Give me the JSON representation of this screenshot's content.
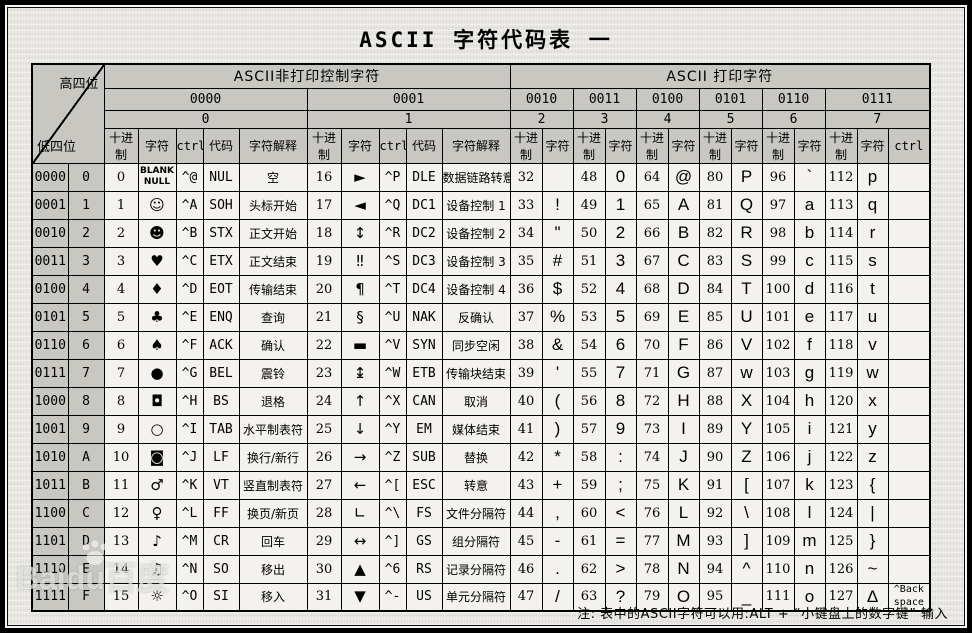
{
  "title": "ASCII 字符代码表 一",
  "corner": {
    "top": "高四位",
    "bottom": "低四位"
  },
  "section_control": "ASCII非打印控制字符",
  "section_print": "ASCII 打印字符",
  "subheaders": {
    "dec": "十进制",
    "char": "字符",
    "ctrl": "ctrl",
    "code": "代码",
    "meaning": "字符解释"
  },
  "row_labels": [
    [
      "0000",
      "0"
    ],
    [
      "0001",
      "1"
    ],
    [
      "0010",
      "2"
    ],
    [
      "0011",
      "3"
    ],
    [
      "0100",
      "4"
    ],
    [
      "0101",
      "5"
    ],
    [
      "0110",
      "6"
    ],
    [
      "0111",
      "7"
    ],
    [
      "1000",
      "8"
    ],
    [
      "1001",
      "9"
    ],
    [
      "1010",
      "A"
    ],
    [
      "1011",
      "B"
    ],
    [
      "1100",
      "C"
    ],
    [
      "1101",
      "D"
    ],
    [
      "1110",
      "E"
    ],
    [
      "1111",
      "F"
    ]
  ],
  "control_groups": [
    {
      "bin": "0000",
      "hex": "0",
      "rows": [
        [
          "0",
          "BLANK\nNULL",
          "^@",
          "NUL",
          "空"
        ],
        [
          "1",
          "☺",
          "^A",
          "SOH",
          "头标开始"
        ],
        [
          "2",
          "☻",
          "^B",
          "STX",
          "正文开始"
        ],
        [
          "3",
          "♥",
          "^C",
          "ETX",
          "正文结束"
        ],
        [
          "4",
          "♦",
          "^D",
          "EOT",
          "传输结束"
        ],
        [
          "5",
          "♣",
          "^E",
          "ENQ",
          "查询"
        ],
        [
          "6",
          "♠",
          "^F",
          "ACK",
          "确认"
        ],
        [
          "7",
          "●",
          "^G",
          "BEL",
          "震铃"
        ],
        [
          "8",
          "◘",
          "^H",
          "BS",
          "退格"
        ],
        [
          "9",
          "○",
          "^I",
          "TAB",
          "水平制表符"
        ],
        [
          "10",
          "◙",
          "^J",
          "LF",
          "换行/新行"
        ],
        [
          "11",
          "♂",
          "^K",
          "VT",
          "竖直制表符"
        ],
        [
          "12",
          "♀",
          "^L",
          "FF",
          "换页/新页"
        ],
        [
          "13",
          "♪",
          "^M",
          "CR",
          "回车"
        ],
        [
          "14",
          "♫",
          "^N",
          "SO",
          "移出"
        ],
        [
          "15",
          "☼",
          "^O",
          "SI",
          "移入"
        ]
      ]
    },
    {
      "bin": "0001",
      "hex": "1",
      "rows": [
        [
          "16",
          "►",
          "^P",
          "DLE",
          "数据链路转意"
        ],
        [
          "17",
          "◄",
          "^Q",
          "DC1",
          "设备控制 1"
        ],
        [
          "18",
          "↕",
          "^R",
          "DC2",
          "设备控制 2"
        ],
        [
          "19",
          "‼",
          "^S",
          "DC3",
          "设备控制 3"
        ],
        [
          "20",
          "¶",
          "^T",
          "DC4",
          "设备控制 4"
        ],
        [
          "21",
          "§",
          "^U",
          "NAK",
          "反确认"
        ],
        [
          "22",
          "▬",
          "^V",
          "SYN",
          "同步空闲"
        ],
        [
          "23",
          "↨",
          "^W",
          "ETB",
          "传输块结束"
        ],
        [
          "24",
          "↑",
          "^X",
          "CAN",
          "取消"
        ],
        [
          "25",
          "↓",
          "^Y",
          "EM",
          "媒体结束"
        ],
        [
          "26",
          "→",
          "^Z",
          "SUB",
          "替换"
        ],
        [
          "27",
          "←",
          "^[",
          "ESC",
          "转意"
        ],
        [
          "28",
          "∟",
          "^\\",
          "FS",
          "文件分隔符"
        ],
        [
          "29",
          "↔",
          "^]",
          "GS",
          "组分隔符"
        ],
        [
          "30",
          "▲",
          "^6",
          "RS",
          "记录分隔符"
        ],
        [
          "31",
          "▼",
          "^-",
          "US",
          "单元分隔符"
        ]
      ]
    }
  ],
  "print_groups": [
    {
      "bin": "0010",
      "hex": "2",
      "rows": [
        [
          "32",
          " "
        ],
        [
          "33",
          "!"
        ],
        [
          "34",
          "\""
        ],
        [
          "35",
          "#"
        ],
        [
          "36",
          "$"
        ],
        [
          "37",
          "%"
        ],
        [
          "38",
          "&"
        ],
        [
          "39",
          "'"
        ],
        [
          "40",
          "("
        ],
        [
          "41",
          ")"
        ],
        [
          "42",
          "*"
        ],
        [
          "43",
          "+"
        ],
        [
          "44",
          ","
        ],
        [
          "45",
          "-"
        ],
        [
          "46",
          "."
        ],
        [
          "47",
          "/"
        ]
      ]
    },
    {
      "bin": "0011",
      "hex": "3",
      "rows": [
        [
          "48",
          "0"
        ],
        [
          "49",
          "1"
        ],
        [
          "50",
          "2"
        ],
        [
          "51",
          "3"
        ],
        [
          "52",
          "4"
        ],
        [
          "53",
          "5"
        ],
        [
          "54",
          "6"
        ],
        [
          "55",
          "7"
        ],
        [
          "56",
          "8"
        ],
        [
          "57",
          "9"
        ],
        [
          "58",
          ":"
        ],
        [
          "59",
          ";"
        ],
        [
          "60",
          "<"
        ],
        [
          "61",
          "="
        ],
        [
          "62",
          ">"
        ],
        [
          "63",
          "?"
        ]
      ]
    },
    {
      "bin": "0100",
      "hex": "4",
      "rows": [
        [
          "64",
          "@"
        ],
        [
          "65",
          "A"
        ],
        [
          "66",
          "B"
        ],
        [
          "67",
          "C"
        ],
        [
          "68",
          "D"
        ],
        [
          "69",
          "E"
        ],
        [
          "70",
          "F"
        ],
        [
          "71",
          "G"
        ],
        [
          "72",
          "H"
        ],
        [
          "73",
          "I"
        ],
        [
          "74",
          "J"
        ],
        [
          "75",
          "K"
        ],
        [
          "76",
          "L"
        ],
        [
          "77",
          "M"
        ],
        [
          "78",
          "N"
        ],
        [
          "79",
          "O"
        ]
      ]
    },
    {
      "bin": "0101",
      "hex": "5",
      "rows": [
        [
          "80",
          "P"
        ],
        [
          "81",
          "Q"
        ],
        [
          "82",
          "R"
        ],
        [
          "83",
          "S"
        ],
        [
          "84",
          "T"
        ],
        [
          "85",
          "U"
        ],
        [
          "86",
          "V"
        ],
        [
          "87",
          "w"
        ],
        [
          "88",
          "X"
        ],
        [
          "89",
          "Y"
        ],
        [
          "90",
          "Z"
        ],
        [
          "91",
          "["
        ],
        [
          "92",
          "\\"
        ],
        [
          "93",
          "]"
        ],
        [
          "94",
          "^"
        ],
        [
          "95",
          "_"
        ]
      ]
    },
    {
      "bin": "0110",
      "hex": "6",
      "rows": [
        [
          "96",
          "`"
        ],
        [
          "97",
          "a"
        ],
        [
          "98",
          "b"
        ],
        [
          "99",
          "c"
        ],
        [
          "100",
          "d"
        ],
        [
          "101",
          "e"
        ],
        [
          "102",
          "f"
        ],
        [
          "103",
          "g"
        ],
        [
          "104",
          "h"
        ],
        [
          "105",
          "i"
        ],
        [
          "106",
          "j"
        ],
        [
          "107",
          "k"
        ],
        [
          "108",
          "l"
        ],
        [
          "109",
          "m"
        ],
        [
          "110",
          "n"
        ],
        [
          "111",
          "o"
        ]
      ]
    },
    {
      "bin": "0111",
      "hex": "7",
      "rows": [
        [
          "112",
          "p"
        ],
        [
          "113",
          "q"
        ],
        [
          "114",
          "r"
        ],
        [
          "115",
          "s"
        ],
        [
          "116",
          "t"
        ],
        [
          "117",
          "u"
        ],
        [
          "118",
          "v"
        ],
        [
          "119",
          "w"
        ],
        [
          "120",
          "x"
        ],
        [
          "121",
          "y"
        ],
        [
          "122",
          "z"
        ],
        [
          "123",
          "{"
        ],
        [
          "124",
          "|"
        ],
        [
          "125",
          "}"
        ],
        [
          "126",
          "~"
        ],
        [
          "127",
          "Δ"
        ]
      ]
    }
  ],
  "ctrl_column": {
    "header": "ctrl",
    "rows": [
      "",
      "",
      "",
      "",
      "",
      "",
      "",
      "",
      "",
      "",
      "",
      "",
      "",
      "",
      "",
      "^Back\nspace"
    ]
  },
  "note": "注: 表中的ASCII字符可以用:ALT + “小键盘上的数字键” 输入",
  "watermark": {
    "text": "Baidu百度"
  },
  "colors": {
    "paper": "#eae8e3",
    "header_bg": "#c9c7c2",
    "cell_bg": "#f4f2ee",
    "line": "#000000",
    "frame": "#000000"
  }
}
